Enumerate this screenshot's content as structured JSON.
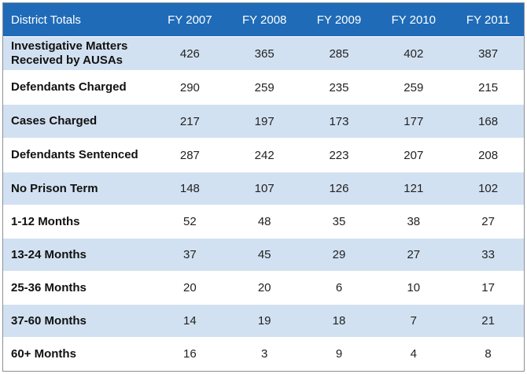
{
  "chart_data": {
    "type": "table",
    "columns": [
      "District Totals",
      "FY 2007",
      "FY 2008",
      "FY 2009",
      "FY 2010",
      "FY 2011"
    ],
    "rows": [
      {
        "label": "Investigative Matters Received by AUSAs",
        "values": [
          426,
          365,
          285,
          402,
          387
        ]
      },
      {
        "label": "Defendants Charged",
        "values": [
          290,
          259,
          235,
          259,
          215
        ]
      },
      {
        "label": "Cases Charged",
        "values": [
          217,
          197,
          173,
          177,
          168
        ]
      },
      {
        "label": "Defendants Sentenced",
        "values": [
          287,
          242,
          223,
          207,
          208
        ]
      },
      {
        "label": "No Prison Term",
        "values": [
          148,
          107,
          126,
          121,
          102
        ]
      },
      {
        "label": "1-12 Months",
        "values": [
          52,
          48,
          35,
          38,
          27
        ]
      },
      {
        "label": "13-24 Months",
        "values": [
          37,
          45,
          29,
          27,
          33
        ]
      },
      {
        "label": "25-36 Months",
        "values": [
          20,
          20,
          6,
          10,
          17
        ]
      },
      {
        "label": "37-60 Months",
        "values": [
          14,
          19,
          18,
          7,
          21
        ]
      },
      {
        "label": "60+ Months",
        "values": [
          16,
          3,
          9,
          4,
          8
        ]
      }
    ],
    "colors": {
      "header_bg": "#1f6bb8",
      "header_text": "#ffffff",
      "band_bg": "#d2e1f1",
      "plain_bg": "#ffffff"
    }
  }
}
